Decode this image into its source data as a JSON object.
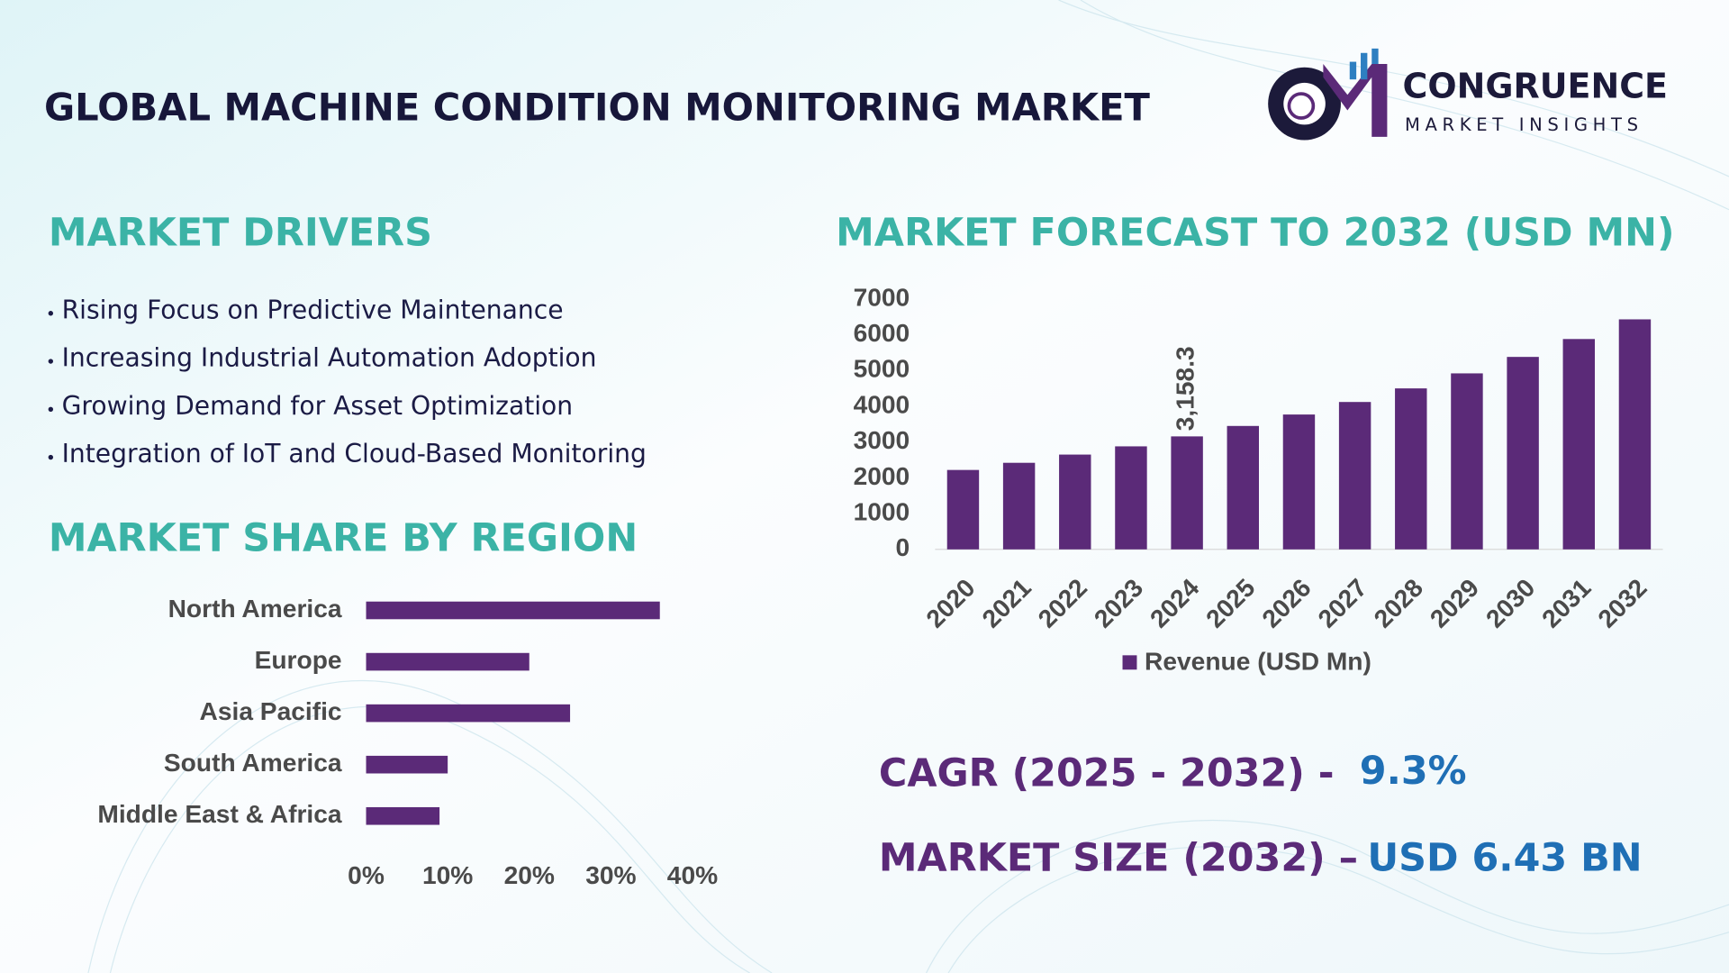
{
  "header": {
    "title": "GLOBAL MACHINE CONDITION MONITORING MARKET",
    "logo_name": "CONGRUENCE",
    "logo_tagline": "MARKET INSIGHTS"
  },
  "drivers": {
    "heading": "MARKET DRIVERS",
    "items": [
      "Rising Focus on Predictive Maintenance",
      "Increasing Industrial Automation Adoption",
      "Growing Demand for Asset Optimization",
      "Integration of IoT and Cloud-Based Monitoring"
    ]
  },
  "chart_data": [
    {
      "type": "bar",
      "title": "MARKET FORECAST TO 2032 (USD MN)",
      "categories": [
        "2020",
        "2021",
        "2022",
        "2023",
        "2024",
        "2025",
        "2026",
        "2027",
        "2028",
        "2029",
        "2030",
        "2031",
        "2032"
      ],
      "series": [
        {
          "name": "Revenue (USD Mn)",
          "color": "#5b2a78",
          "values": [
            2220,
            2420,
            2650,
            2880,
            3158.3,
            3450,
            3770,
            4120,
            4500,
            4920,
            5380,
            5880,
            6430
          ],
          "value_labels": [
            null,
            null,
            null,
            null,
            "3,158.3",
            null,
            null,
            null,
            null,
            null,
            null,
            null,
            null
          ]
        }
      ],
      "ylim": [
        0,
        7000
      ],
      "yticks": [
        0,
        1000,
        2000,
        3000,
        4000,
        5000,
        6000,
        7000
      ],
      "grid": false,
      "legend": "bottom"
    },
    {
      "type": "barh",
      "title": "MARKET SHARE BY REGION",
      "categories": [
        "North America",
        "Europe",
        "Asia Pacific",
        "South America",
        "Middle East & Africa"
      ],
      "values": [
        36,
        20,
        25,
        10,
        9
      ],
      "color": "#5b2a78",
      "xlim": [
        0,
        40
      ],
      "xticks": [
        {
          "value": 0,
          "label": "0%"
        },
        {
          "value": 10,
          "label": "10%"
        },
        {
          "value": 20,
          "label": "20%"
        },
        {
          "value": 30,
          "label": "30%"
        },
        {
          "value": 40,
          "label": "40%"
        }
      ],
      "grid": false
    }
  ],
  "stats": {
    "cagr_label": "CAGR (2025 - 2032) -",
    "cagr_value": "9.3%",
    "size_label": "MARKET SIZE (2032) –",
    "size_value": "USD 6.43 BN"
  }
}
